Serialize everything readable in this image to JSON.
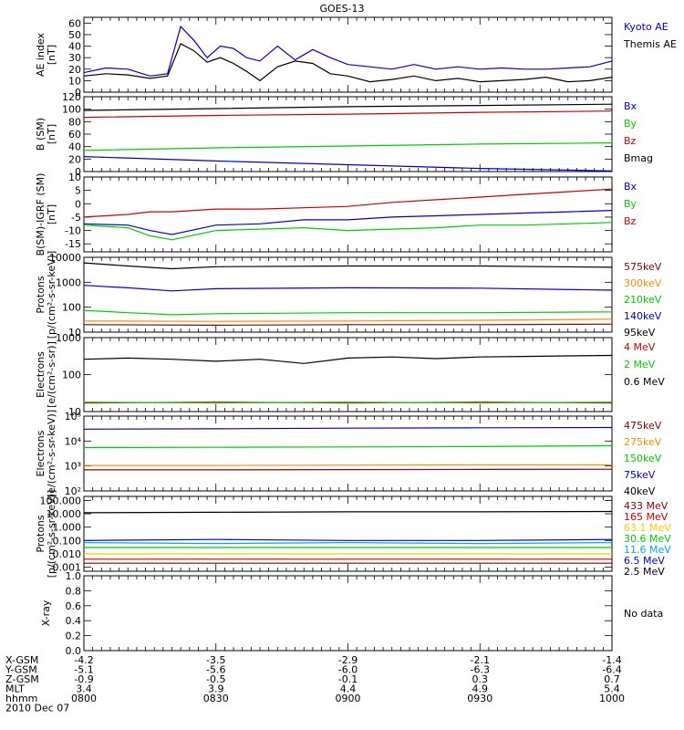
{
  "title": "GOES-13",
  "x_ticks": [
    "0800",
    "0830",
    "0900",
    "0930",
    "1000"
  ],
  "footer": {
    "rows": [
      {
        "label": "X-GSM",
        "values": [
          "-4.2",
          "-3.5",
          "-2.9",
          "-2.1",
          "-1.4"
        ]
      },
      {
        "label": "Y-GSM",
        "values": [
          "-5.1",
          "-5.6",
          "-6.0",
          "-6.3",
          "-6.4"
        ]
      },
      {
        "label": "Z-GSM",
        "values": [
          "-0.9",
          "-0.5",
          "-0.1",
          "0.3",
          "0.7"
        ]
      },
      {
        "label": "MLT",
        "values": [
          "3.4",
          "3.9",
          "4.4",
          "4.9",
          "5.4"
        ]
      },
      {
        "label": "hhmm",
        "values": [
          "0800",
          "0830",
          "0900",
          "0930",
          "1000"
        ]
      }
    ],
    "date": "2010 Dec 07"
  },
  "chart_data": [
    {
      "type": "line",
      "ylabel": "AE index\n[nT]",
      "ylim": [
        0,
        65
      ],
      "yscale": "linear",
      "yticks": [
        0,
        10,
        20,
        30,
        40,
        50,
        60
      ],
      "yticklabels": [
        "0",
        "10",
        "20",
        "30",
        "40",
        "50",
        "60"
      ],
      "legend_placement": "right",
      "x_time_range": [
        "0800",
        "1000"
      ],
      "series": [
        {
          "name": "Kyoto AE",
          "color": "#0000cc",
          "x": [
            "0800",
            "0805",
            "0810",
            "0815",
            "0819",
            "0822",
            "0825",
            "0828",
            "0831",
            "0834",
            "0837",
            "0840",
            "0844",
            "0848",
            "0852",
            "0856",
            "0900",
            "0905",
            "0910",
            "0915",
            "0920",
            "0925",
            "0930",
            "0935",
            "0940",
            "0945",
            "0950",
            "0955",
            "1000"
          ],
          "values": [
            17,
            21,
            20,
            14,
            16,
            57,
            45,
            30,
            40,
            38,
            30,
            27,
            40,
            28,
            37,
            30,
            24,
            22,
            20,
            24,
            20,
            22,
            20,
            21,
            20,
            20,
            21,
            22,
            27
          ]
        },
        {
          "name": "Themis AE",
          "color": "#000000",
          "x": [
            "0800",
            "0805",
            "0810",
            "0815",
            "0819",
            "0822",
            "0825",
            "0828",
            "0831",
            "0834",
            "0837",
            "0840",
            "0844",
            "0848",
            "0852",
            "0856",
            "0900",
            "0905",
            "0910",
            "0915",
            "0920",
            "0925",
            "0930",
            "0935",
            "0940",
            "0945",
            "0950",
            "0955",
            "1000"
          ],
          "values": [
            14,
            16,
            15,
            12,
            14,
            42,
            36,
            26,
            30,
            25,
            18,
            10,
            22,
            27,
            25,
            16,
            14,
            9,
            11,
            14,
            10,
            12,
            9,
            10,
            11,
            13,
            9,
            10,
            13
          ]
        }
      ]
    },
    {
      "type": "line",
      "ylabel": "B (SM)\n[nT]",
      "ylim": [
        0,
        120
      ],
      "yscale": "linear",
      "yticks": [
        0,
        20,
        40,
        60,
        80,
        100,
        120
      ],
      "yticklabels": [
        "0",
        "20",
        "40",
        "60",
        "80",
        "100",
        "120"
      ],
      "x_time_range": [
        "0800",
        "1000"
      ],
      "series": [
        {
          "name": "Bx",
          "color": "#0000cc",
          "x": [
            "0800",
            "0830",
            "0900",
            "0930",
            "1000"
          ],
          "values": [
            24,
            17,
            11,
            5,
            1
          ]
        },
        {
          "name": "By",
          "color": "#00cc00",
          "x": [
            "0800",
            "0830",
            "0900",
            "0930",
            "1000"
          ],
          "values": [
            34,
            38,
            41,
            44,
            46
          ]
        },
        {
          "name": "Bz",
          "color": "#cc0000",
          "x": [
            "0800",
            "0830",
            "0900",
            "0930",
            "1000"
          ],
          "values": [
            87,
            90,
            92,
            95,
            97
          ]
        },
        {
          "name": "Bmag",
          "color": "#000000",
          "x": [
            "0800",
            "0830",
            "0900",
            "0930",
            "1000"
          ],
          "values": [
            98,
            101,
            104,
            106,
            108
          ]
        }
      ]
    },
    {
      "type": "line",
      "ylabel": "B(SM)-IGRF (SM)\n[nT]",
      "ylim": [
        -18,
        10
      ],
      "yscale": "linear",
      "yticks": [
        -15,
        -10,
        -5,
        0,
        5,
        10
      ],
      "yticklabels": [
        "-15",
        "-10",
        "-5",
        "0",
        "5",
        "10"
      ],
      "x_time_range": [
        "0800",
        "1000"
      ],
      "series": [
        {
          "name": "Bx",
          "color": "#0000cc",
          "x": [
            "0800",
            "0810",
            "0815",
            "0820",
            "0830",
            "0840",
            "0850",
            "0900",
            "0910",
            "0920",
            "0930",
            "0940",
            "0950",
            "1000"
          ],
          "values": [
            -7.5,
            -8,
            -10,
            -11.5,
            -8,
            -7.5,
            -6,
            -6,
            -5,
            -4.5,
            -4,
            -3.5,
            -3,
            -2.5
          ]
        },
        {
          "name": "By",
          "color": "#00cc00",
          "x": [
            "0800",
            "0810",
            "0815",
            "0820",
            "0830",
            "0840",
            "0850",
            "0900",
            "0910",
            "0920",
            "0930",
            "0940",
            "0950",
            "1000"
          ],
          "values": [
            -8,
            -9,
            -12,
            -13.5,
            -10,
            -9.5,
            -9,
            -10,
            -9.5,
            -9,
            -8,
            -8,
            -7.5,
            -7
          ]
        },
        {
          "name": "Bz",
          "color": "#cc0000",
          "x": [
            "0800",
            "0810",
            "0815",
            "0820",
            "0830",
            "0840",
            "0850",
            "0900",
            "0910",
            "0920",
            "0930",
            "0940",
            "0950",
            "1000"
          ],
          "values": [
            -5,
            -4,
            -3,
            -3,
            -2,
            -2,
            -1.5,
            -1,
            0.5,
            1.5,
            2.5,
            3.5,
            4.5,
            5.5
          ]
        }
      ]
    },
    {
      "type": "line",
      "ylabel": "Protons\n[p/(cm²-s-sr-keV)]",
      "ylim": [
        10,
        10000
      ],
      "yscale": "log",
      "yticks": [
        10,
        100,
        1000,
        10000
      ],
      "yticklabels": [
        "10",
        "100",
        "1000",
        "10000"
      ],
      "x_time_range": [
        "0800",
        "1000"
      ],
      "series": [
        {
          "name": "575keV",
          "color": "#8b0000",
          "x": [
            "0800",
            "0830",
            "0900",
            "0930",
            "1000"
          ],
          "values": [
            20,
            19,
            20,
            20,
            21
          ]
        },
        {
          "name": "300keV",
          "color": "#ff8c00",
          "x": [
            "0800",
            "0830",
            "0900",
            "0930",
            "1000"
          ],
          "values": [
            28,
            27,
            28,
            30,
            33
          ]
        },
        {
          "name": "210keV",
          "color": "#00cc00",
          "x": [
            "0800",
            "0810",
            "0820",
            "0830",
            "0900",
            "0930",
            "1000"
          ],
          "values": [
            75,
            60,
            50,
            55,
            60,
            60,
            65
          ]
        },
        {
          "name": "140keV",
          "color": "#0000cc",
          "x": [
            "0800",
            "0810",
            "0820",
            "0830",
            "0900",
            "0930",
            "1000"
          ],
          "values": [
            750,
            600,
            450,
            550,
            600,
            580,
            480
          ]
        },
        {
          "name": "95keV",
          "color": "#000000",
          "x": [
            "0800",
            "0810",
            "0820",
            "0830",
            "0900",
            "0930",
            "1000"
          ],
          "values": [
            6000,
            4500,
            3500,
            4200,
            4500,
            4500,
            4000
          ]
        }
      ]
    },
    {
      "type": "line",
      "ylabel": "Electrons\n[e/(cm²-s-sr)]",
      "ylim": [
        10,
        1000
      ],
      "yscale": "log",
      "yticks": [
        10,
        100,
        1000
      ],
      "yticklabels": [
        "10",
        "100",
        "1000"
      ],
      "x_time_range": [
        "0800",
        "1000"
      ],
      "series": [
        {
          "name": "4 MeV",
          "color": "#cc0000",
          "x": [
            "0800",
            "0830",
            "0900",
            "0930",
            "1000"
          ],
          "values": [
            17,
            18,
            17,
            18,
            17
          ]
        },
        {
          "name": "2 MeV",
          "color": "#00cc00",
          "x": [
            "0800",
            "0830",
            "0900",
            "0930",
            "1000"
          ],
          "values": [
            18,
            17,
            18,
            17,
            18
          ]
        },
        {
          "name": "0.6 MeV",
          "color": "#000000",
          "x": [
            "0800",
            "0810",
            "0820",
            "0830",
            "0840",
            "0850",
            "0900",
            "0910",
            "0920",
            "0930",
            "0940",
            "0950",
            "1000"
          ],
          "values": [
            260,
            280,
            260,
            230,
            260,
            200,
            280,
            300,
            270,
            300,
            310,
            320,
            330
          ]
        }
      ]
    },
    {
      "type": "line",
      "ylabel": "Electrons\n[e/(cm²-s-sr-keV)]",
      "ylim": [
        100,
        100000
      ],
      "yscale": "log",
      "yticks": [
        100,
        1000,
        10000,
        100000
      ],
      "yticklabels": [
        "10²",
        "10³",
        "10⁴",
        "10⁵"
      ],
      "x_time_range": [
        "0800",
        "1000"
      ],
      "series": [
        {
          "name": "475keV",
          "color": "#8b0000",
          "x": [
            "0800",
            "0830",
            "0900",
            "0930",
            "1000"
          ],
          "values": [
            700,
            700,
            720,
            730,
            740
          ]
        },
        {
          "name": "275keV",
          "color": "#ff8c00",
          "x": [
            "0800",
            "0830",
            "0900",
            "0930",
            "1000"
          ],
          "values": [
            1050,
            1050,
            1080,
            1100,
            1100
          ]
        },
        {
          "name": "150keV",
          "color": "#00cc00",
          "x": [
            "0800",
            "0830",
            "0900",
            "0930",
            "1000"
          ],
          "values": [
            5500,
            5600,
            5800,
            6000,
            6500
          ]
        },
        {
          "name": "75keV",
          "color": "#0000cc",
          "x": [
            "0800",
            "0830",
            "0900",
            "0930",
            "1000"
          ],
          "values": [
            30000,
            31000,
            33000,
            34000,
            35000
          ]
        },
        {
          "name": "40keV",
          "color": "#000000",
          "x": [
            "0800",
            "1000"
          ],
          "values": [
            null,
            null
          ]
        }
      ]
    },
    {
      "type": "line",
      "ylabel": "Protons\n[p/(cm²-s-sr-keV)]",
      "ylim": [
        0.0005,
        200
      ],
      "yscale": "log",
      "yticks": [
        0.001,
        0.01,
        0.1,
        1,
        10,
        100
      ],
      "yticklabels": [
        "0.001",
        "0.010",
        "0.100",
        "1.000",
        "10.000",
        "100.000"
      ],
      "x_time_range": [
        "0800",
        "1000"
      ],
      "series": [
        {
          "name": "433 MeV",
          "color": "#8b0000",
          "x": [
            "0800",
            "0830",
            "0900",
            "0930",
            "1000"
          ],
          "values": [
            0.002,
            0.002,
            0.002,
            0.002,
            0.002
          ]
        },
        {
          "name": "165 MeV",
          "color": "#cc0000",
          "x": [
            "0800",
            "0830",
            "0900",
            "0930",
            "1000"
          ],
          "values": [
            0.004,
            0.004,
            0.004,
            0.004,
            0.004
          ]
        },
        {
          "name": "63.1 MeV",
          "color": "#ffcc00",
          "x": [
            "0800",
            "0830",
            "0900",
            "0930",
            "1000"
          ],
          "values": [
            0.01,
            0.01,
            0.01,
            0.01,
            0.01
          ]
        },
        {
          "name": "30.6 MeV",
          "color": "#00cc00",
          "x": [
            "0800",
            "0830",
            "0900",
            "0930",
            "1000"
          ],
          "values": [
            0.03,
            0.03,
            0.03,
            0.03,
            0.03
          ]
        },
        {
          "name": "11.6 MeV",
          "color": "#00aaee",
          "x": [
            "0800",
            "0830",
            "0900",
            "0930",
            "1000"
          ],
          "values": [
            0.07,
            0.06,
            0.07,
            0.06,
            0.07
          ]
        },
        {
          "name": "6.5 MeV",
          "color": "#0000cc",
          "x": [
            "0800",
            "0830",
            "0900",
            "0930",
            "1000"
          ],
          "values": [
            0.1,
            0.12,
            0.1,
            0.1,
            0.12
          ]
        },
        {
          "name": "2.5 MeV",
          "color": "#000000",
          "x": [
            "0800",
            "0830",
            "0900",
            "0930",
            "1000"
          ],
          "values": [
            12,
            13,
            14,
            14,
            15
          ]
        }
      ]
    },
    {
      "type": "line",
      "ylabel": "X-ray",
      "ylim": [
        0,
        1
      ],
      "yscale": "linear",
      "yticks": [
        0,
        0.2,
        0.4,
        0.6,
        0.8,
        1.0
      ],
      "yticklabels": [
        "0.0",
        "0.2",
        "0.4",
        "0.6",
        "0.8",
        "1.0"
      ],
      "x_time_range": [
        "0800",
        "1000"
      ],
      "note": "No data",
      "series": []
    }
  ]
}
